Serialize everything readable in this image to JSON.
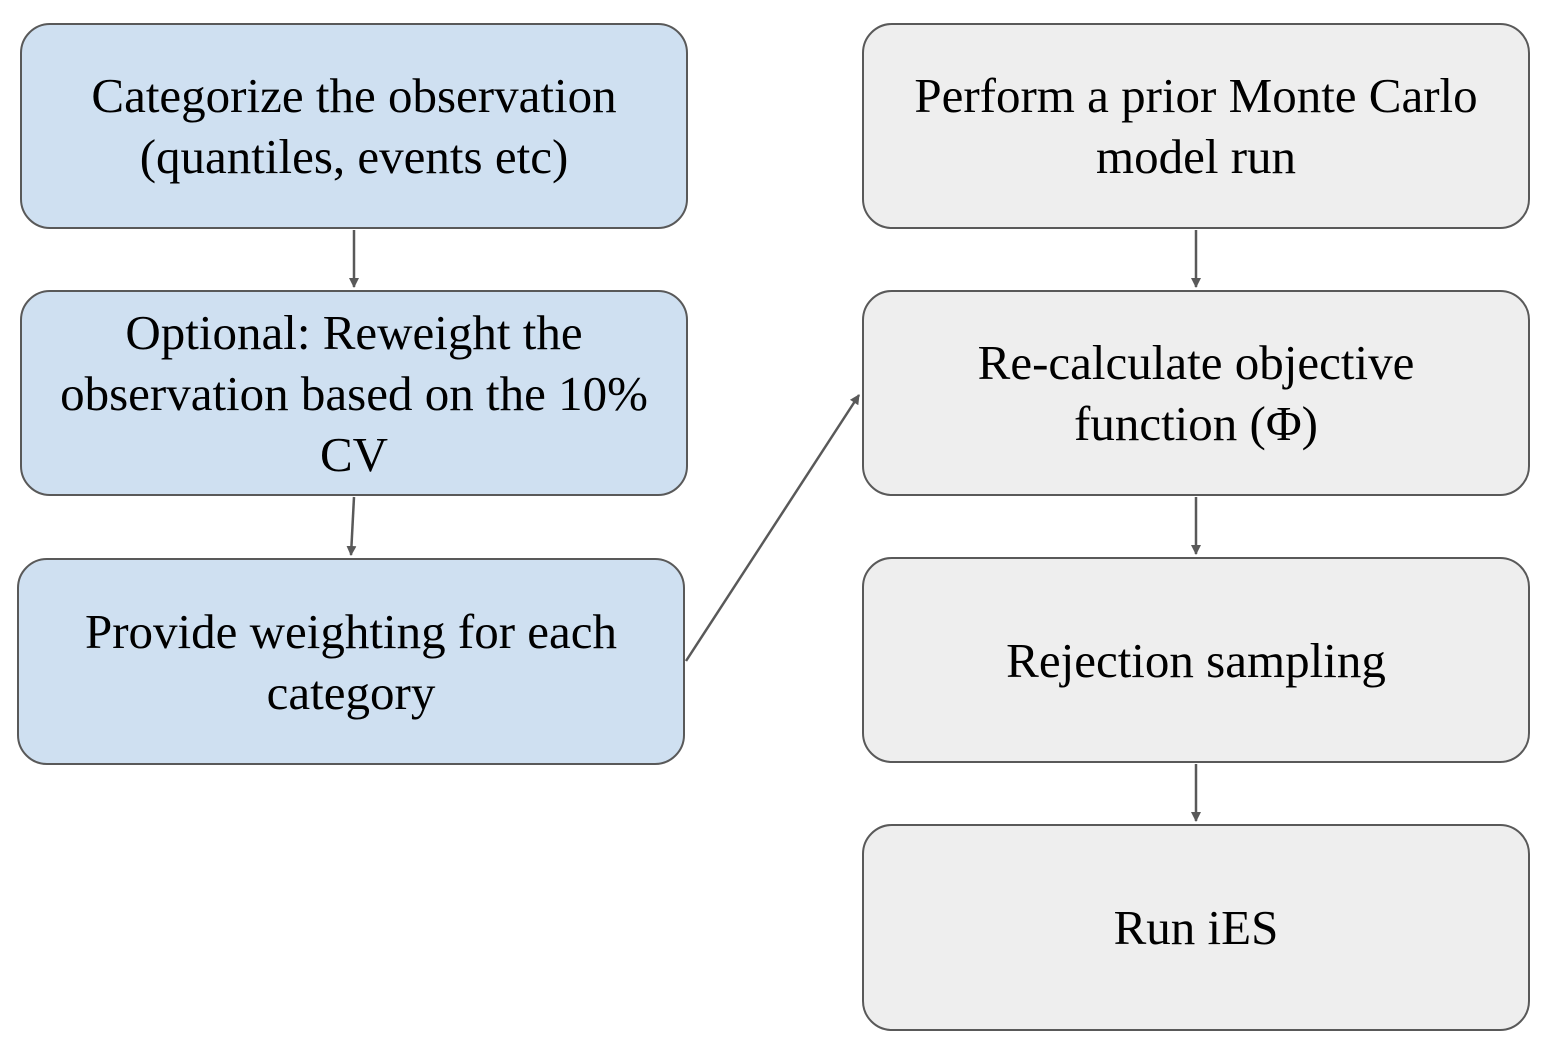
{
  "diagram": {
    "colors": {
      "left_fill": "#cfe0f1",
      "right_fill": "#eeeeee",
      "border": "#595959",
      "arrow": "#595959",
      "text": "#000000"
    },
    "left_column": [
      {
        "id": "categorize",
        "label": "Categorize the observation (quantiles, events etc)"
      },
      {
        "id": "reweight",
        "label": "Optional: Reweight the observation based on the 10% CV"
      },
      {
        "id": "weighting",
        "label": "Provide weighting for each category"
      }
    ],
    "right_column": [
      {
        "id": "montecarlo",
        "label": "Perform a prior Monte Carlo model run"
      },
      {
        "id": "objective",
        "label": "Re-calculate objective function (Φ)"
      },
      {
        "id": "rejection",
        "label": "Rejection sampling"
      },
      {
        "id": "ies",
        "label": "Run iES"
      }
    ],
    "edges": [
      {
        "from": "categorize",
        "to": "reweight"
      },
      {
        "from": "reweight",
        "to": "weighting"
      },
      {
        "from": "weighting",
        "to": "objective"
      },
      {
        "from": "montecarlo",
        "to": "objective"
      },
      {
        "from": "objective",
        "to": "rejection"
      },
      {
        "from": "rejection",
        "to": "ies"
      }
    ]
  }
}
